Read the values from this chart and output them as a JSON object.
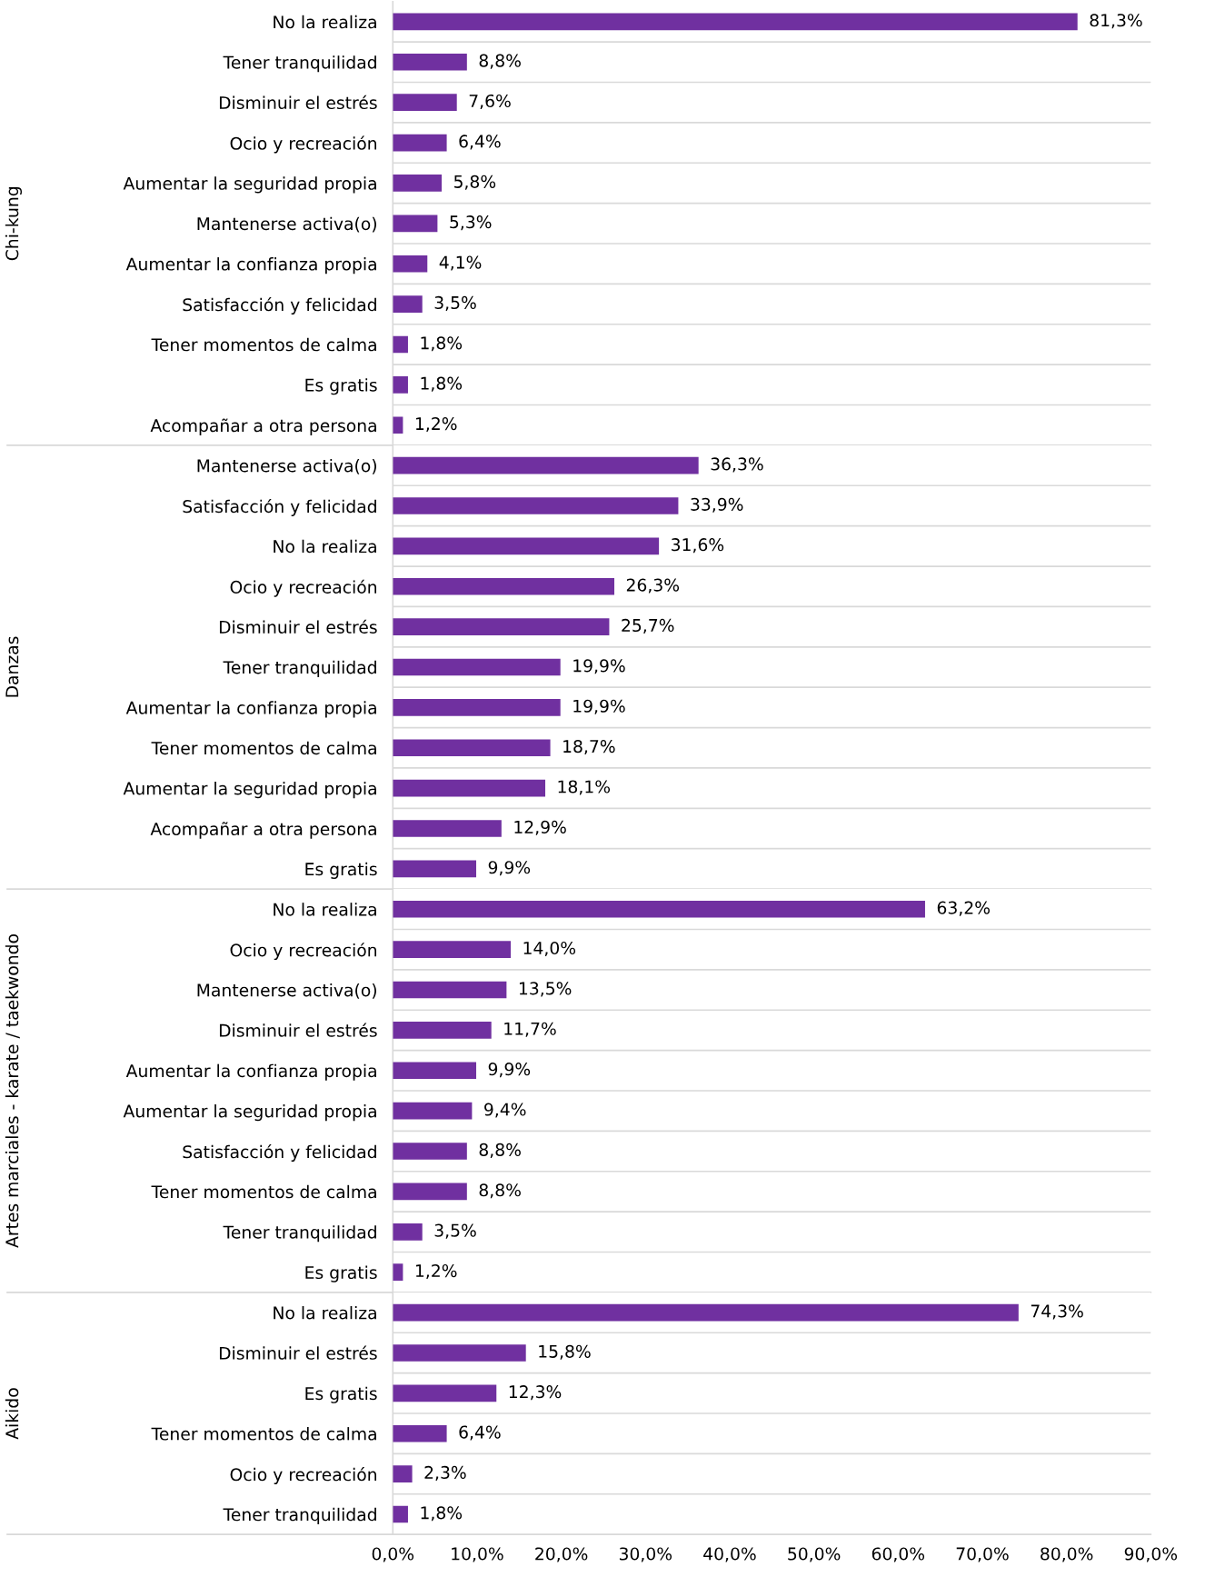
{
  "chart_data": [
    {
      "type": "bar",
      "orientation": "horizontal",
      "ylabel": "Chi-kung",
      "color": "#7030a0",
      "grid": "y",
      "tick_labels": "y",
      "categories": [
        "No la realiza",
        "Tener tranquilidad",
        "Disminuir el estrés",
        "Ocio y recreación",
        "Aumentar la seguridad propia",
        "Mantenerse activa(o)",
        "Aumentar la confianza propia",
        "Satisfacción y felicidad",
        "Tener momentos de calma",
        "Es gratis",
        "Acompañar a otra persona"
      ],
      "values": [
        81.3,
        8.8,
        7.6,
        6.4,
        5.8,
        5.3,
        4.1,
        3.5,
        1.8,
        1.8,
        1.2
      ],
      "value_labels": [
        "81,3%",
        "8,8%",
        "7,6%",
        "6,4%",
        "5,8%",
        "5,3%",
        "4,1%",
        "3,5%",
        "1,8%",
        "1,8%",
        "1,2%"
      ],
      "xlim": [
        0,
        90
      ]
    },
    {
      "type": "bar",
      "orientation": "horizontal",
      "ylabel": "Danzas",
      "color": "#7030a0",
      "grid": "y",
      "tick_labels": "y",
      "categories": [
        "Mantenerse activa(o)",
        "Satisfacción y felicidad",
        "No la realiza",
        "Ocio y recreación",
        "Disminuir el estrés",
        "Tener tranquilidad",
        "Aumentar la confianza propia",
        "Tener momentos de calma",
        "Aumentar la seguridad propia",
        "Acompañar a otra persona",
        "Es gratis"
      ],
      "values": [
        36.3,
        33.9,
        31.6,
        26.3,
        25.7,
        19.9,
        19.9,
        18.7,
        18.1,
        12.9,
        9.9
      ],
      "value_labels": [
        "36,3%",
        "33,9%",
        "31,6%",
        "26,3%",
        "25,7%",
        "19,9%",
        "19,9%",
        "18,7%",
        "18,1%",
        "12,9%",
        "9,9%"
      ],
      "xlim": [
        0,
        90
      ]
    },
    {
      "type": "bar",
      "orientation": "horizontal",
      "ylabel": "Artes marciales - karate / taekwondo",
      "color": "#7030a0",
      "grid": "y",
      "tick_labels": "y",
      "categories": [
        "No la realiza",
        "Ocio y recreación",
        "Mantenerse activa(o)",
        "Disminuir el estrés",
        "Aumentar la confianza propia",
        "Aumentar la seguridad propia",
        "Satisfacción y felicidad",
        "Tener momentos de calma",
        "Tener tranquilidad",
        "Es gratis"
      ],
      "values": [
        63.2,
        14.0,
        13.5,
        11.7,
        9.9,
        9.4,
        8.8,
        8.8,
        3.5,
        1.2
      ],
      "value_labels": [
        "63,2%",
        "14,0%",
        "13,5%",
        "11,7%",
        "9,9%",
        "9,4%",
        "8,8%",
        "8,8%",
        "3,5%",
        "1,2%"
      ],
      "xlim": [
        0,
        90
      ]
    },
    {
      "type": "bar",
      "orientation": "horizontal",
      "ylabel": "Aikido",
      "color": "#7030a0",
      "grid": "y",
      "categories": [
        "No la realiza",
        "Disminuir el estrés",
        "Es gratis",
        "Tener momentos de calma",
        "Ocio y recreación",
        "Tener tranquilidad"
      ],
      "values": [
        74.3,
        15.8,
        12.3,
        6.4,
        2.3,
        1.8
      ],
      "value_labels": [
        "74,3%",
        "15,8%",
        "12,3%",
        "6,4%",
        "2,3%",
        "1,8%"
      ],
      "xlim": [
        0,
        90
      ],
      "xticks": [
        {
          "value": 0,
          "label": "0,0%"
        },
        {
          "value": 10,
          "label": "10,0%"
        },
        {
          "value": 20,
          "label": "20,0%"
        },
        {
          "value": 30,
          "label": "30,0%"
        },
        {
          "value": 40,
          "label": "40,0%"
        },
        {
          "value": 50,
          "label": "50,0%"
        },
        {
          "value": 60,
          "label": "60,0%"
        },
        {
          "value": 70,
          "label": "70,0%"
        },
        {
          "value": 80,
          "label": "80,0%"
        },
        {
          "value": 90,
          "label": "90,0%"
        }
      ]
    }
  ]
}
